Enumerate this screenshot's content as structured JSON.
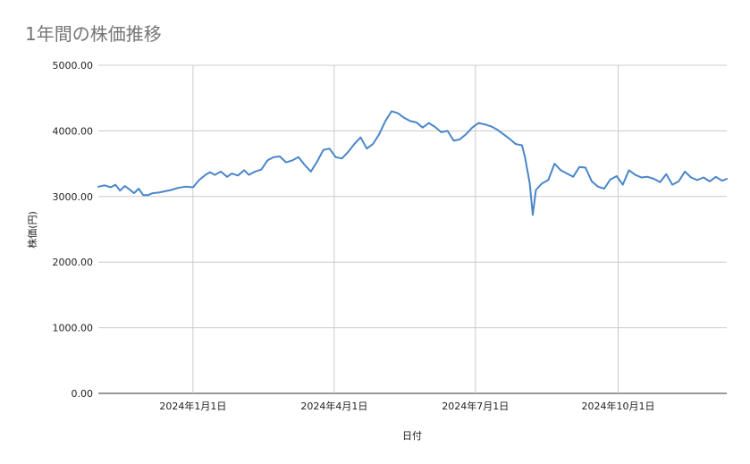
{
  "chart_data": {
    "type": "line",
    "title": "1年間の株価推移",
    "xlabel": "日付",
    "ylabel": "株価(円)",
    "ylim": [
      0,
      5000
    ],
    "y_ticks": [
      "0.00",
      "1000.00",
      "2000.00",
      "3000.00",
      "4000.00",
      "5000.00"
    ],
    "y_tick_values": [
      0,
      1000,
      2000,
      3000,
      4000,
      5000
    ],
    "x_ticks": [
      "2024年1月1日",
      "2024年4月1日",
      "2024年7月1日",
      "2024年10月1日"
    ],
    "x_tick_dates": [
      "2024-01-01",
      "2024-04-01",
      "2024-07-01",
      "2024-10-01"
    ],
    "xlim": [
      "2023-11-01",
      "2024-12-10"
    ],
    "grid": true,
    "line_color": "#4a86c8",
    "series": [
      {
        "x": [
          "2023-11-01",
          "2023-11-05",
          "2023-11-09",
          "2023-11-12",
          "2023-11-15",
          "2023-11-18",
          "2023-11-21",
          "2023-11-24",
          "2023-11-27",
          "2023-11-30",
          "2023-12-03",
          "2023-12-06",
          "2023-12-10",
          "2023-12-14",
          "2023-12-18",
          "2023-12-22",
          "2023-12-27",
          "2024-01-01",
          "2024-01-05",
          "2024-01-09",
          "2024-01-12",
          "2024-01-15",
          "2024-01-19",
          "2024-01-23",
          "2024-01-26",
          "2024-01-30",
          "2024-02-03",
          "2024-02-06",
          "2024-02-10",
          "2024-02-14",
          "2024-02-18",
          "2024-02-22",
          "2024-02-26",
          "2024-03-01",
          "2024-03-05",
          "2024-03-09",
          "2024-03-13",
          "2024-03-17",
          "2024-03-21",
          "2024-03-25",
          "2024-03-29",
          "2024-04-02",
          "2024-04-06",
          "2024-04-10",
          "2024-04-14",
          "2024-04-18",
          "2024-04-22",
          "2024-04-26",
          "2024-04-30",
          "2024-05-04",
          "2024-05-08",
          "2024-05-12",
          "2024-05-16",
          "2024-05-20",
          "2024-05-24",
          "2024-05-28",
          "2024-06-01",
          "2024-06-05",
          "2024-06-09",
          "2024-06-13",
          "2024-06-17",
          "2024-06-21",
          "2024-06-25",
          "2024-06-29",
          "2024-07-03",
          "2024-07-07",
          "2024-07-11",
          "2024-07-15",
          "2024-07-19",
          "2024-07-23",
          "2024-07-27",
          "2024-07-31",
          "2024-08-02",
          "2024-08-05",
          "2024-08-07",
          "2024-08-09",
          "2024-08-13",
          "2024-08-17",
          "2024-08-21",
          "2024-08-25",
          "2024-08-29",
          "2024-09-02",
          "2024-09-06",
          "2024-09-10",
          "2024-09-14",
          "2024-09-18",
          "2024-09-22",
          "2024-09-26",
          "2024-09-30",
          "2024-10-04",
          "2024-10-08",
          "2024-10-12",
          "2024-10-16",
          "2024-10-20",
          "2024-10-24",
          "2024-10-28",
          "2024-11-01",
          "2024-11-05",
          "2024-11-09",
          "2024-11-13",
          "2024-11-17",
          "2024-11-21",
          "2024-11-25",
          "2024-11-29",
          "2024-12-03",
          "2024-12-07",
          "2024-12-10"
        ],
        "y": [
          3150,
          3170,
          3140,
          3180,
          3090,
          3160,
          3110,
          3050,
          3120,
          3020,
          3020,
          3050,
          3060,
          3080,
          3100,
          3130,
          3150,
          3140,
          3250,
          3330,
          3370,
          3330,
          3380,
          3300,
          3350,
          3320,
          3400,
          3330,
          3380,
          3410,
          3550,
          3600,
          3610,
          3520,
          3550,
          3600,
          3480,
          3380,
          3530,
          3710,
          3730,
          3600,
          3580,
          3680,
          3800,
          3900,
          3730,
          3800,
          3950,
          4150,
          4300,
          4270,
          4200,
          4150,
          4130,
          4050,
          4120,
          4060,
          3980,
          4000,
          3850,
          3870,
          3950,
          4050,
          4120,
          4100,
          4070,
          4020,
          3950,
          3880,
          3800,
          3780,
          3600,
          3200,
          2720,
          3100,
          3200,
          3250,
          3500,
          3400,
          3350,
          3300,
          3450,
          3440,
          3230,
          3150,
          3120,
          3260,
          3310,
          3180,
          3400,
          3330,
          3290,
          3300,
          3270,
          3220,
          3340,
          3180,
          3230,
          3380,
          3290,
          3250,
          3290,
          3230,
          3300,
          3240,
          3270
        ]
      }
    ]
  }
}
